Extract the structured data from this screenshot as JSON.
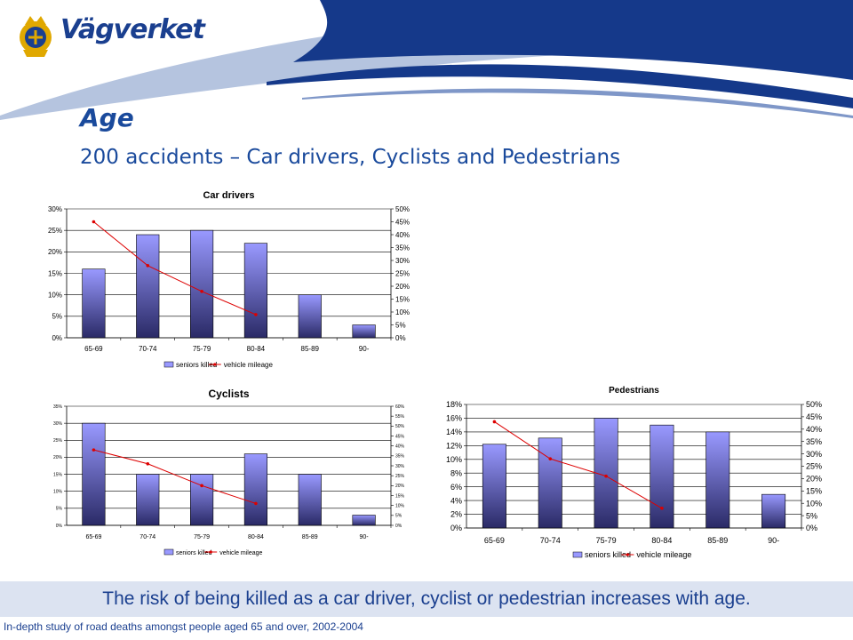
{
  "logo": {
    "text": "Vägverket"
  },
  "slide": {
    "title": "Age",
    "subtitle": "200 accidents – Car drivers, Cyclists and Pedestrians",
    "banner": "The risk of being killed as a car driver, cyclist or pedestrian increases with age.",
    "footer": "In-depth study of road deaths amongst people aged 65 and over, 2002-2004"
  },
  "colors": {
    "brand_blue": "#1a3f8f",
    "header_band_light": "#b5c4df",
    "bar_top": "#9999ff",
    "bar_bottom": "#2a2a66",
    "line": "#dd0000",
    "banner_bg": "#dce3f1"
  },
  "chart_data": [
    {
      "id": "car",
      "type": "bar",
      "title": "Car drivers",
      "categories": [
        "65-69",
        "70-74",
        "75-79",
        "80-84",
        "85-89",
        "90-"
      ],
      "series": [
        {
          "name": "seniors killed",
          "type": "bar",
          "axis": "left",
          "values": [
            16,
            24,
            25,
            22,
            10,
            3
          ]
        },
        {
          "name": "vehicle mileage",
          "type": "line",
          "axis": "right",
          "values": [
            45,
            28,
            18,
            9,
            null,
            null
          ]
        }
      ],
      "y_left": {
        "min": 0,
        "max": 30,
        "step": 5,
        "ticks": [
          "0%",
          "5%",
          "10%",
          "15%",
          "20%",
          "25%",
          "30%"
        ]
      },
      "y_right": {
        "min": 0,
        "max": 50,
        "step": 5,
        "ticks": [
          "0%",
          "5%",
          "10%",
          "15%",
          "20%",
          "25%",
          "30%",
          "35%",
          "40%",
          "45%",
          "50%"
        ]
      },
      "grid": true,
      "legend": "bottom"
    },
    {
      "id": "cyc",
      "type": "bar",
      "title": "Cyclists",
      "categories": [
        "65-69",
        "70-74",
        "75-79",
        "80-84",
        "85-89",
        "90-"
      ],
      "series": [
        {
          "name": "seniors killed",
          "type": "bar",
          "axis": "left",
          "values": [
            30,
            15,
            15,
            21,
            15,
            3
          ]
        },
        {
          "name": "vehicle mileage",
          "type": "line",
          "axis": "right",
          "values": [
            38,
            31,
            20,
            11,
            null,
            null
          ]
        }
      ],
      "y_left": {
        "min": 0,
        "max": 35,
        "step": 5,
        "ticks": [
          "0%",
          "5%",
          "10%",
          "15%",
          "20%",
          "25%",
          "30%",
          "35%"
        ]
      },
      "y_right": {
        "min": 0,
        "max": 60,
        "step": 5,
        "ticks": [
          "0%",
          "5%",
          "10%",
          "15%",
          "20%",
          "25%",
          "30%",
          "35%",
          "40%",
          "45%",
          "50%",
          "55%",
          "60%"
        ]
      },
      "grid": true,
      "legend": "bottom"
    },
    {
      "id": "ped",
      "type": "bar",
      "title": "Pedestrians",
      "categories": [
        "65-69",
        "70-74",
        "75-79",
        "80-84",
        "85-89",
        "90-"
      ],
      "series": [
        {
          "name": "seniors killed",
          "type": "bar",
          "axis": "left",
          "values": [
            12.2,
            13.1,
            16,
            15,
            14,
            4.9
          ]
        },
        {
          "name": "vehicle mileage",
          "type": "line",
          "axis": "right",
          "values": [
            43,
            28,
            21,
            8,
            null,
            null
          ]
        }
      ],
      "y_left": {
        "min": 0,
        "max": 18,
        "step": 2,
        "ticks": [
          "0%",
          "2%",
          "4%",
          "6%",
          "8%",
          "10%",
          "12%",
          "14%",
          "16%",
          "18%"
        ]
      },
      "y_right": {
        "min": 0,
        "max": 50,
        "step": 5,
        "ticks": [
          "0%",
          "5%",
          "10%",
          "15%",
          "20%",
          "25%",
          "30%",
          "35%",
          "40%",
          "45%",
          "50%"
        ]
      },
      "grid": true,
      "legend": "bottom"
    }
  ]
}
